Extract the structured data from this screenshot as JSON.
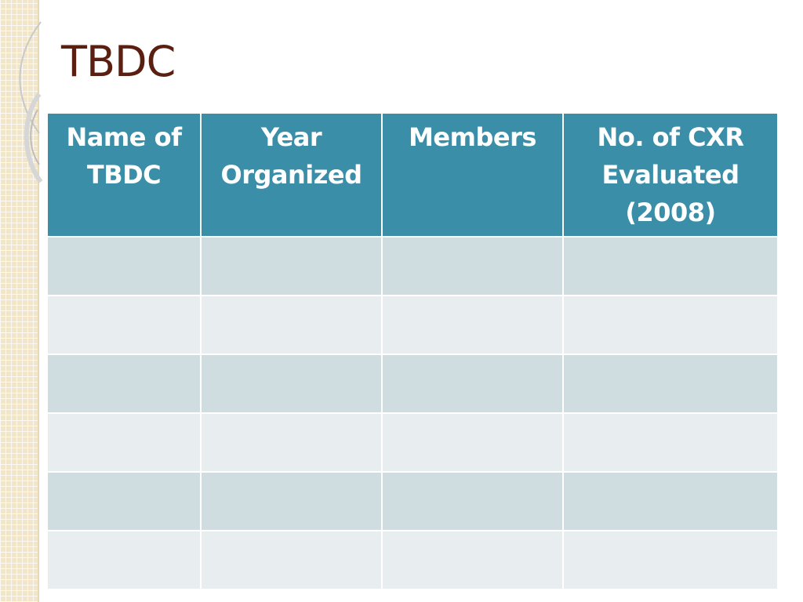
{
  "slide": {
    "title": "TBDC"
  },
  "table": {
    "headers": [
      "Name of TBDC",
      "Year Organized",
      "Members",
      "No. of CXR Evaluated (2008)"
    ],
    "rows": [
      [
        "",
        "",
        "",
        ""
      ],
      [
        "",
        "",
        "",
        ""
      ],
      [
        "",
        "",
        "",
        ""
      ],
      [
        "",
        "",
        "",
        ""
      ],
      [
        "",
        "",
        "",
        ""
      ],
      [
        "",
        "",
        "",
        ""
      ]
    ]
  },
  "colors": {
    "title": "#5b1f12",
    "header_bg": "#3a8ea8",
    "row_band_dark": "#cfdde0",
    "row_band_light": "#e8eef0",
    "left_strip": "#f1e6c9"
  }
}
